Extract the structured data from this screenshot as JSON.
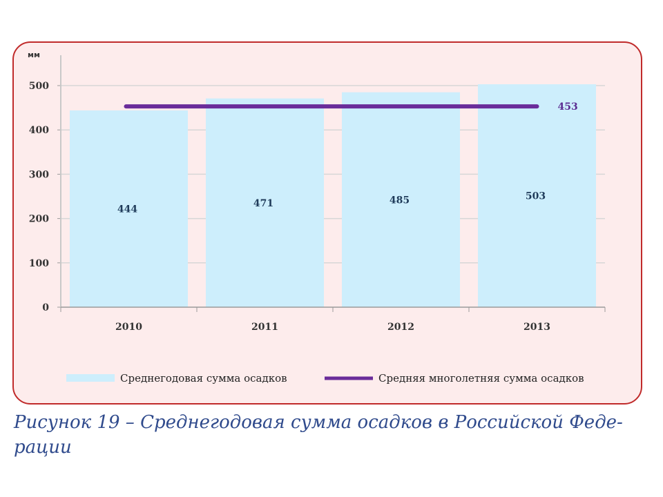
{
  "chart_data": {
    "type": "bar",
    "y_unit": "мм",
    "categories": [
      "2010",
      "2011",
      "2012",
      "2013"
    ],
    "series": [
      {
        "name": "Среднегодовая сумма осадков",
        "type": "bar",
        "color": "#cdeefc",
        "values": [
          444,
          471,
          485,
          503
        ],
        "data_labels": [
          "444",
          "471",
          "485",
          "503"
        ]
      },
      {
        "name": "Средняя многолетняя сумма осадков",
        "type": "line",
        "color": "#6a2c9a",
        "values": [
          453,
          453,
          453,
          453
        ],
        "end_label": "453"
      }
    ],
    "ylim": [
      0,
      500
    ],
    "yticks": [
      0,
      100,
      200,
      300,
      400,
      500
    ],
    "grid": true,
    "legend_position": "bottom"
  },
  "caption": "Рисунок 19 – Среднегодовая сумма осадков в Российской Феде-рации",
  "colors": {
    "frame_border": "#c02a2a",
    "frame_background": "#fdecec",
    "caption": "#2f4a8c"
  }
}
